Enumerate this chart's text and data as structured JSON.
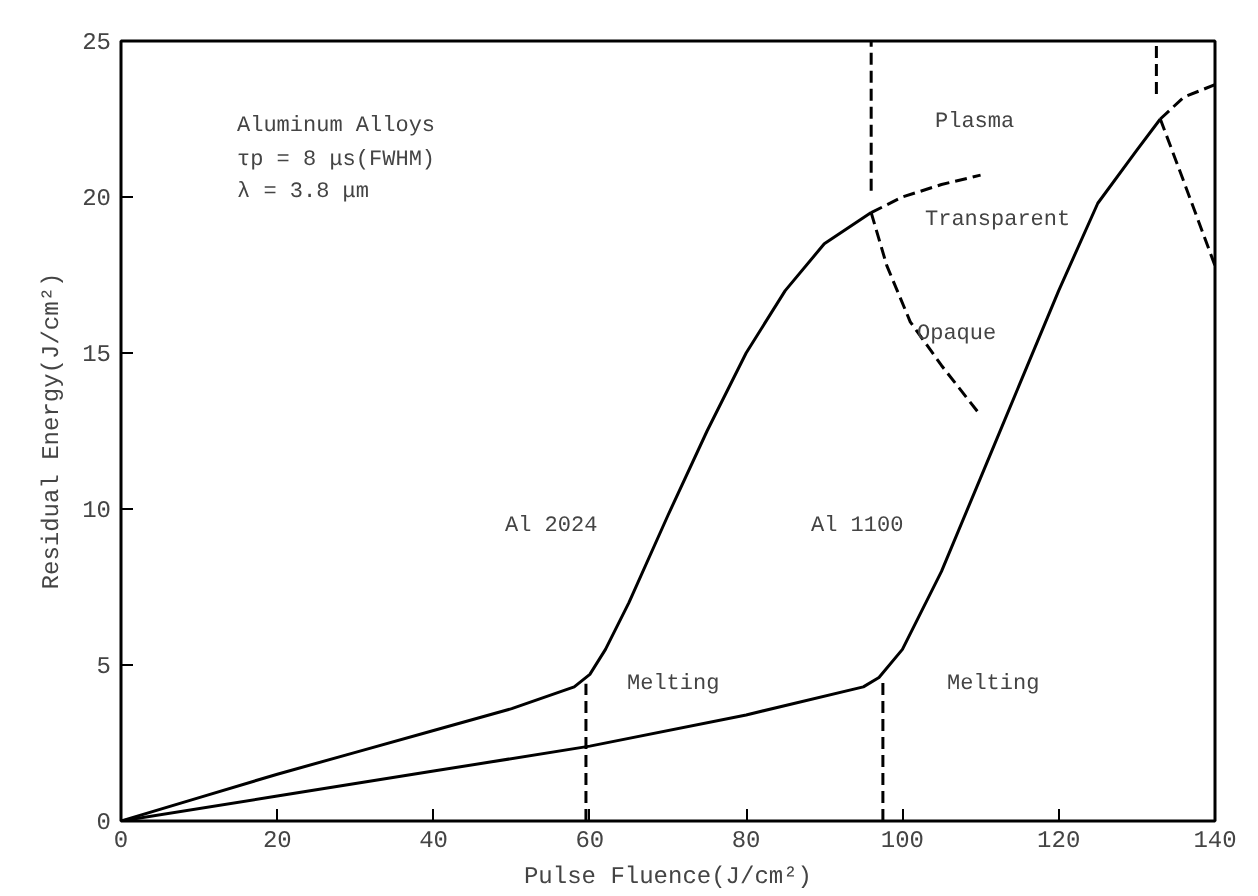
{
  "chart_data": {
    "type": "line",
    "xlabel": "Pulse Fluence(J/cm²)",
    "ylabel": "Residual Energy(J/cm²)",
    "xlim": [
      0,
      140
    ],
    "ylim": [
      0,
      25
    ],
    "xticks": [
      0,
      20,
      40,
      60,
      80,
      100,
      120,
      140
    ],
    "yticks": [
      0,
      5,
      10,
      15,
      20,
      25
    ],
    "grid": false,
    "line_style": "solid",
    "series": [
      {
        "color": "#000000",
        "x": [
          0,
          10,
          20,
          30,
          40,
          50,
          58,
          60,
          62,
          65,
          70,
          75,
          80,
          85,
          90,
          96
        ],
        "values": [
          0,
          0.75,
          1.5,
          2.2,
          2.9,
          3.6,
          4.3,
          4.7,
          5.5,
          7,
          9.8,
          12.5,
          15,
          17,
          18.5,
          19.5
        ]
      },
      {
        "color": "#000000",
        "line_style": "dashed",
        "x": [
          96,
          100,
          105,
          110
        ],
        "values": [
          19.5,
          20,
          20.4,
          20.7
        ]
      },
      {
        "color": "#000000",
        "line_style": "dashed",
        "x": [
          96,
          98,
          101,
          105,
          110
        ],
        "values": [
          19.5,
          17.8,
          16,
          14.6,
          13
        ]
      },
      {
        "color": "#000000",
        "x": [
          0,
          20,
          40,
          60,
          80,
          95,
          97,
          100,
          105,
          110,
          115,
          120,
          125,
          130,
          133
        ],
        "values": [
          0,
          0.8,
          1.6,
          2.4,
          3.4,
          4.3,
          4.6,
          5.5,
          8,
          11,
          14,
          17,
          19.8,
          21.5,
          22.5
        ]
      },
      {
        "color": "#000000",
        "line_style": "dashed",
        "x": [
          133,
          136,
          140
        ],
        "values": [
          22.5,
          23.2,
          23.6
        ]
      },
      {
        "color": "#000000",
        "line_style": "dashed",
        "x": [
          133,
          136,
          140
        ],
        "values": [
          22.5,
          20.5,
          17.8
        ]
      },
      {
        "color": "#000000",
        "line_style": "dashed",
        "x": [
          96,
          96
        ],
        "values": [
          20.2,
          25
        ]
      },
      {
        "color": "#000000",
        "line_style": "dashed",
        "x": [
          59.5,
          59.5
        ],
        "values": [
          0,
          4.4
        ]
      },
      {
        "color": "#000000",
        "line_style": "dashed",
        "x": [
          97.5,
          97.5
        ],
        "values": [
          0,
          4.6
        ]
      },
      {
        "color": "#000000",
        "line_style": "dashed",
        "x": [
          132.5,
          132.5
        ],
        "values": [
          23.3,
          25
        ]
      }
    ],
    "annotations": [
      "Aluminum Alloys",
      "τp  =  8 μs(FWHM)",
      "λ  =  3.8 μm",
      "Al 2024",
      "Al 1100",
      "Melting",
      "Melting",
      "Plasma",
      "Transparent",
      "Opaque"
    ]
  }
}
